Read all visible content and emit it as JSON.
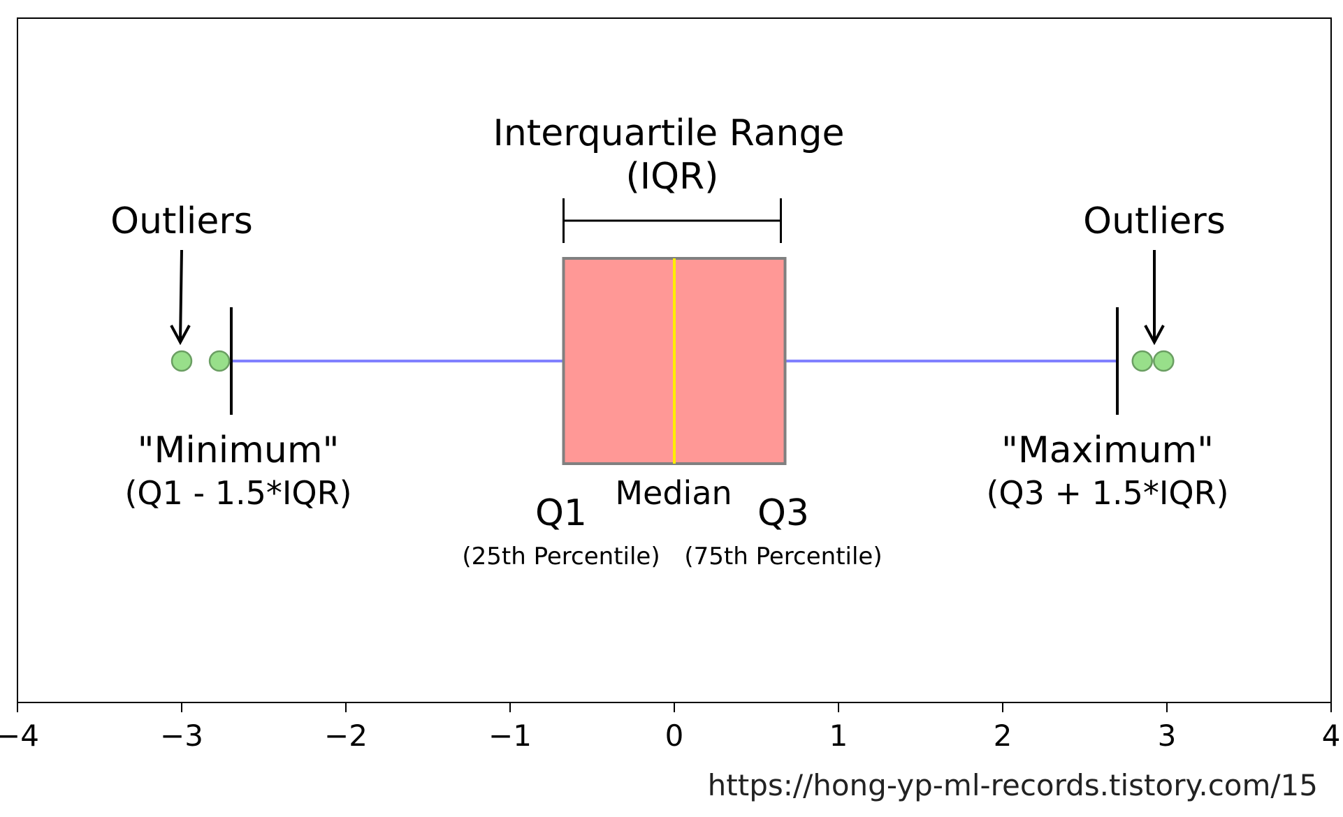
{
  "chart_data": {
    "type": "box",
    "xlim": [
      -4,
      4
    ],
    "ticks": [
      -4,
      -3,
      -2,
      -1,
      0,
      1,
      2,
      3,
      4
    ],
    "tick_labels": [
      "−4",
      "−3",
      "−2",
      "−1",
      "0",
      "1",
      "2",
      "3",
      "4"
    ],
    "q1": -0.6745,
    "median": 0,
    "q3": 0.6745,
    "whisker_low": -2.698,
    "whisker_high": 2.698,
    "outliers": [
      -3.0,
      -2.77,
      2.85,
      2.98
    ],
    "colors": {
      "box_fill": "#ff9896",
      "box_edge": "#808080",
      "median": "#ffee00",
      "whisker": "#8080ff",
      "outlier_fill": "#98df8a",
      "outlier_edge": "#6a9e62"
    }
  },
  "annotations": {
    "iqr_title": "Interquartile Range",
    "iqr_abbrev": "(IQR)",
    "outliers_left": "Outliers",
    "outliers_right": "Outliers",
    "minimum": "\"Minimum\"",
    "minimum_formula": "(Q1 - 1.5*IQR)",
    "maximum": "\"Maximum\"",
    "maximum_formula": "(Q3 + 1.5*IQR)",
    "median": "Median",
    "q1": "Q1",
    "q1_sub": "(25th Percentile)",
    "q3": "Q3",
    "q3_sub": "(75th Percentile)"
  },
  "watermark": "https://hong-yp-ml-records.tistory.com/15"
}
